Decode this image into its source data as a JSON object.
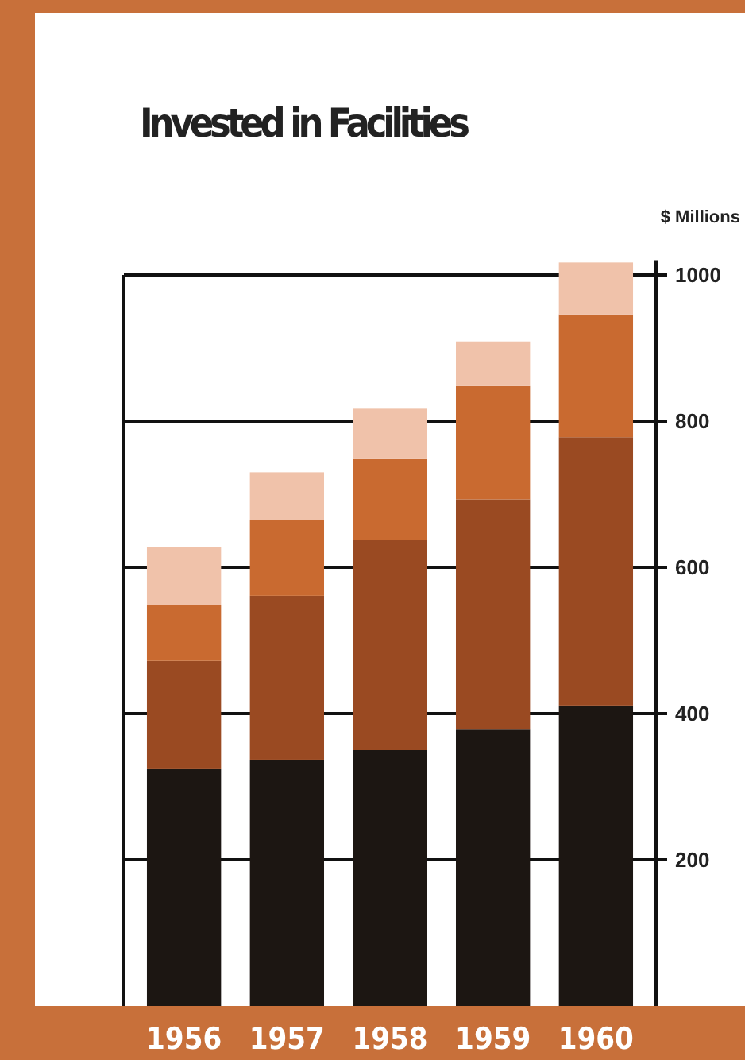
{
  "chart_data": {
    "type": "bar",
    "title": "Invested in Facilities",
    "ylabel": "$ Millions",
    "categories": [
      "1956",
      "1957",
      "1958",
      "1959",
      "1960"
    ],
    "stacked": true,
    "series": [
      {
        "color": "#1c1612",
        "values": [
          324,
          337,
          350,
          378,
          411
        ]
      },
      {
        "color": "#9a4a22",
        "values": [
          148,
          224,
          287,
          315,
          367
        ]
      },
      {
        "color": "#c96a30",
        "values": [
          76,
          104,
          111,
          155,
          168
        ]
      },
      {
        "color": "#f0c2aa",
        "values": [
          80,
          65,
          69,
          61,
          71
        ]
      }
    ],
    "ylim": [
      0,
      1020
    ],
    "yticks": [
      200,
      400,
      600,
      800,
      1000
    ],
    "grid": "y"
  }
}
